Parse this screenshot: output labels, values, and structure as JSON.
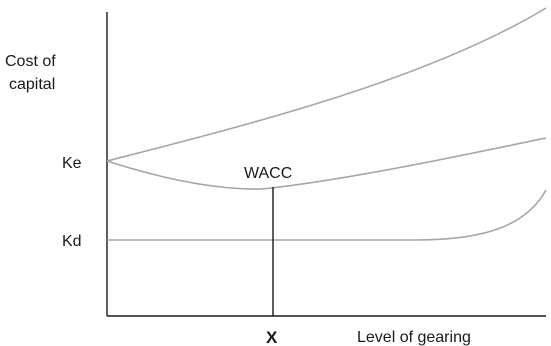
{
  "y_axis_title_line1": "Cost of",
  "y_axis_title_line2": "capital",
  "x_axis_title": "Level of gearing",
  "ke_label": "Ke",
  "kd_label": "Kd",
  "wacc_label": "WACC",
  "optimum_label": "X",
  "colors": {
    "axis": "#1a1a1a",
    "curves": "#a6a6a6",
    "text": "#1a1a1a"
  }
}
